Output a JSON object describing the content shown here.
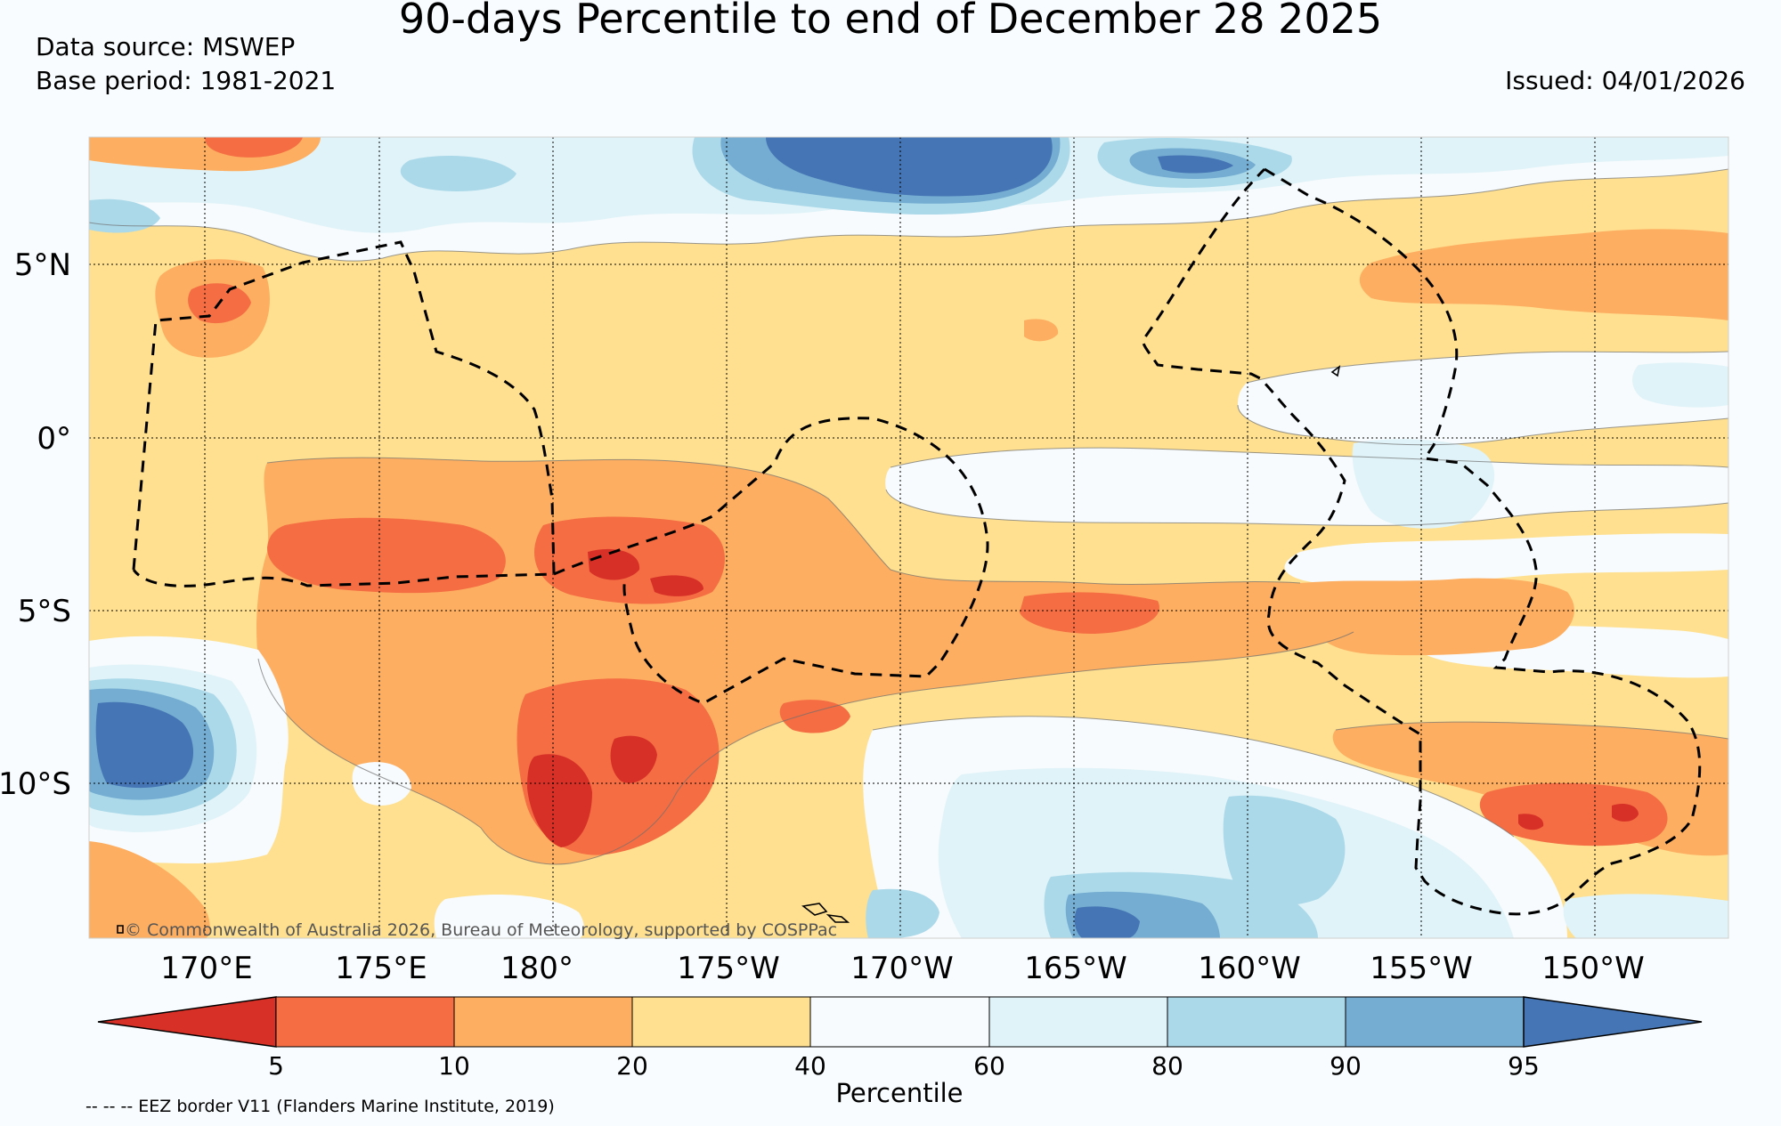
{
  "title": "90-days Percentile to end of December 28 2025",
  "data_source": "Data source: MSWEP",
  "base_period": "Base period: 1981-2021",
  "issued": "Issued: 04/01/2026",
  "copyright": "© Commonwealth of Australia 2026, Bureau of Meteorology, supported by COSPPac",
  "footnote": "-- -- -- EEZ border V11 (Flanders Marine Institute, 2019)",
  "map": {
    "lat_labels": [
      "5°N",
      "0°",
      "5°S",
      "10°S"
    ],
    "lon_labels": [
      "170°E",
      "175°E",
      "180°",
      "175°W",
      "170°W",
      "165°W",
      "160°W",
      "155°W",
      "150°W"
    ],
    "colors": {
      "below_5": "#d73027",
      "p5_10": "#f46d43",
      "p10_20": "#fdae61",
      "p20_40": "#fee090",
      "p40_60": "#f7fbfd",
      "p60_80": "#e0f3f8",
      "p80_90": "#abd9e9",
      "p90_95": "#74add1",
      "above_95": "#4575b4"
    }
  },
  "colorbar": {
    "title": "Percentile",
    "ticks": [
      "5",
      "10",
      "20",
      "40",
      "60",
      "80",
      "90",
      "95"
    ],
    "colors": [
      "#d73027",
      "#f46d43",
      "#fdae61",
      "#fee090",
      "#f7fbfd",
      "#e0f3f8",
      "#abd9e9",
      "#74add1",
      "#4575b4"
    ]
  }
}
